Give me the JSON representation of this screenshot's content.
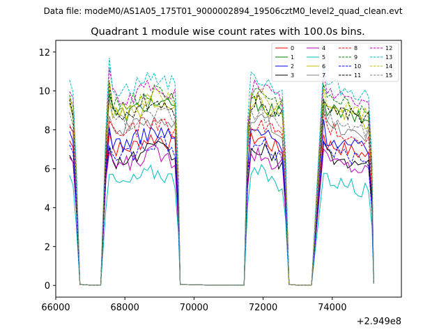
{
  "chart_data": {
    "type": "line",
    "suptitle": "Data file: modeM0/AS1A05_175T01_9000002894_19506cztM0_level2_quad_clean.evt",
    "title": "Quadrant 1 module wise count rates with 100.0s bins.",
    "xlabel": "",
    "ylabel": "",
    "x_offset_label": "+2.949e8",
    "xlim": [
      66000,
      76000
    ],
    "ylim": [
      -0.6,
      12.6
    ],
    "x_ticks": [
      66000,
      68000,
      70000,
      72000,
      74000
    ],
    "x_tick_labels": [
      "66000",
      "68000",
      "70000",
      "72000",
      "74000"
    ],
    "y_ticks": [
      0,
      2,
      4,
      6,
      8,
      10,
      12
    ],
    "y_tick_labels": [
      "0",
      "2",
      "4",
      "6",
      "8",
      "10",
      "12"
    ],
    "legend_location": "top-right",
    "bin_seconds": 100,
    "segments": [
      {
        "start": 66400,
        "bins": 3
      },
      {
        "start": 67450,
        "bins": 22
      },
      {
        "start": 71550,
        "bins": 12
      },
      {
        "start": 73750,
        "bins": 15
      }
    ],
    "gaps": [
      [
        66700,
        67300
      ],
      [
        69600,
        71450
      ],
      [
        72750,
        73400
      ]
    ],
    "series": [
      {
        "name": "0",
        "color": "#ff0000",
        "dash": "solid",
        "level": 7.3
      },
      {
        "name": "1",
        "color": "#008000",
        "dash": "solid",
        "level": 9.1
      },
      {
        "name": "2",
        "color": "#0000ff",
        "dash": "solid",
        "level": 7.6
      },
      {
        "name": "3",
        "color": "#000000",
        "dash": "solid",
        "level": 6.7
      },
      {
        "name": "4",
        "color": "#bf00bf",
        "dash": "solid",
        "level": 6.5
      },
      {
        "name": "5",
        "color": "#00bfbf",
        "dash": "solid",
        "level": 5.5
      },
      {
        "name": "6",
        "color": "#bfbf00",
        "dash": "solid",
        "level": 9.0
      },
      {
        "name": "7",
        "color": "#808080",
        "dash": "solid",
        "level": 8.3
      },
      {
        "name": "8",
        "color": "#ff0000",
        "dash": "dashed",
        "level": 8.1
      },
      {
        "name": "9",
        "color": "#008000",
        "dash": "dashed",
        "level": 9.6
      },
      {
        "name": "10",
        "color": "#0000ff",
        "dash": "dashed",
        "level": 7.0
      },
      {
        "name": "11",
        "color": "#000000",
        "dash": "dashed",
        "level": 9.2
      },
      {
        "name": "12",
        "color": "#bf00bf",
        "dash": "dashed",
        "level": 9.9
      },
      {
        "name": "13",
        "color": "#00bfbf",
        "dash": "dashed",
        "level": 10.4
      },
      {
        "name": "14",
        "color": "#bfbf00",
        "dash": "dashed",
        "level": 9.4
      },
      {
        "name": "15",
        "color": "#808080",
        "dash": "dashed",
        "level": 8.6
      }
    ]
  }
}
